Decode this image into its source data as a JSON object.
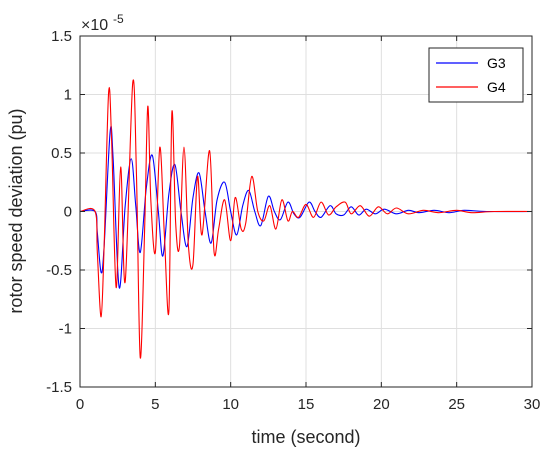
{
  "chart_data": {
    "type": "line",
    "title": "",
    "xlabel": "time (second)",
    "ylabel": "rotor speed deviation (pu)",
    "xlim": [
      0,
      30
    ],
    "ylim": [
      -1.5,
      1.5
    ],
    "y_scale_exponent_label": {
      "base": "×10",
      "exponent": "-5"
    },
    "xticks": [
      "0",
      "5",
      "10",
      "15",
      "20",
      "25",
      "30"
    ],
    "yticks": [
      "-1.5",
      "-1",
      "-0.5",
      "0",
      "0.5",
      "1",
      "1.5"
    ],
    "grid": true,
    "legend_position": "top-right",
    "series": [
      {
        "name": "G3",
        "color": "#0000ff",
        "points": [
          [
            0,
            0
          ],
          [
            1.0,
            0
          ],
          [
            1.15,
            -0.18
          ],
          [
            1.4,
            -0.52
          ],
          [
            1.6,
            -0.3
          ],
          [
            2.0,
            0.68
          ],
          [
            2.2,
            0.45
          ],
          [
            2.6,
            -0.65
          ],
          [
            3.0,
            0.05
          ],
          [
            3.4,
            0.45
          ],
          [
            3.7,
            0.05
          ],
          [
            4.0,
            -0.35
          ],
          [
            4.4,
            0.2
          ],
          [
            4.8,
            0.48
          ],
          [
            5.2,
            0.0
          ],
          [
            5.5,
            -0.38
          ],
          [
            5.9,
            0.15
          ],
          [
            6.3,
            0.4
          ],
          [
            6.7,
            0.0
          ],
          [
            7.1,
            -0.3
          ],
          [
            7.5,
            0.12
          ],
          [
            7.9,
            0.33
          ],
          [
            8.3,
            0.0
          ],
          [
            8.7,
            -0.27
          ],
          [
            9.1,
            0.1
          ],
          [
            9.6,
            0.25
          ],
          [
            10.0,
            0.0
          ],
          [
            10.4,
            -0.2
          ],
          [
            10.8,
            0.05
          ],
          [
            11.2,
            0.18
          ],
          [
            11.6,
            0.0
          ],
          [
            12.0,
            -0.12
          ],
          [
            12.5,
            0.13
          ],
          [
            12.9,
            0.0
          ],
          [
            13.3,
            -0.07
          ],
          [
            13.8,
            0.08
          ],
          [
            14.2,
            -0.02
          ],
          [
            14.6,
            -0.05
          ],
          [
            15.2,
            0.08
          ],
          [
            15.6,
            0.0
          ],
          [
            16.0,
            -0.05
          ],
          [
            16.6,
            0.05
          ],
          [
            17.0,
            -0.02
          ],
          [
            17.5,
            -0.03
          ],
          [
            18.0,
            0.04
          ],
          [
            18.5,
            -0.03
          ],
          [
            19.0,
            0.02
          ],
          [
            19.6,
            -0.02
          ],
          [
            20.2,
            0.02
          ],
          [
            21.0,
            -0.02
          ],
          [
            21.8,
            0.01
          ],
          [
            22.5,
            -0.01
          ],
          [
            23.5,
            0.01
          ],
          [
            24.5,
            -0.01
          ],
          [
            25.5,
            0.01
          ],
          [
            27,
            0
          ],
          [
            30,
            0
          ]
        ]
      },
      {
        "name": "G4",
        "color": "#ff0000",
        "points": [
          [
            0,
            0
          ],
          [
            1.0,
            0
          ],
          [
            1.15,
            -0.35
          ],
          [
            1.4,
            -0.9
          ],
          [
            1.6,
            -0.3
          ],
          [
            1.9,
            1.02
          ],
          [
            2.1,
            0.6
          ],
          [
            2.4,
            -0.65
          ],
          [
            2.7,
            0.38
          ],
          [
            3.0,
            -0.6
          ],
          [
            3.5,
            1.1
          ],
          [
            3.75,
            0.3
          ],
          [
            4.0,
            -1.25
          ],
          [
            4.3,
            -0.1
          ],
          [
            4.5,
            0.9
          ],
          [
            4.7,
            0.1
          ],
          [
            5.0,
            -0.35
          ],
          [
            5.3,
            0.55
          ],
          [
            5.6,
            -0.2
          ],
          [
            5.9,
            -0.85
          ],
          [
            6.1,
            0.85
          ],
          [
            6.35,
            -0.1
          ],
          [
            6.6,
            -0.3
          ],
          [
            6.9,
            0.55
          ],
          [
            7.2,
            -0.3
          ],
          [
            7.5,
            -0.45
          ],
          [
            7.8,
            0.3
          ],
          [
            8.1,
            -0.2
          ],
          [
            8.6,
            0.52
          ],
          [
            8.9,
            -0.35
          ],
          [
            9.2,
            -0.15
          ],
          [
            9.6,
            0.1
          ],
          [
            10.0,
            -0.25
          ],
          [
            10.3,
            0.12
          ],
          [
            10.7,
            -0.15
          ],
          [
            11.0,
            -0.1
          ],
          [
            11.4,
            0.3
          ],
          [
            11.8,
            0.0
          ],
          [
            12.2,
            -0.08
          ],
          [
            12.6,
            0.05
          ],
          [
            13.0,
            -0.15
          ],
          [
            13.4,
            0.1
          ],
          [
            13.8,
            -0.08
          ],
          [
            14.1,
            0.0
          ],
          [
            14.5,
            -0.05
          ],
          [
            15.0,
            0.06
          ],
          [
            15.5,
            -0.05
          ],
          [
            16.0,
            0.08
          ],
          [
            16.5,
            -0.03
          ],
          [
            17.0,
            0.04
          ],
          [
            17.6,
            0.08
          ],
          [
            18.0,
            -0.02
          ],
          [
            18.6,
            0.05
          ],
          [
            19.2,
            -0.04
          ],
          [
            19.8,
            0.04
          ],
          [
            20.4,
            -0.02
          ],
          [
            21.0,
            0.03
          ],
          [
            21.8,
            -0.02
          ],
          [
            22.8,
            0.01
          ],
          [
            23.8,
            -0.01
          ],
          [
            25.0,
            0.01
          ],
          [
            26.0,
            -0.01
          ],
          [
            27.5,
            0
          ],
          [
            30,
            0
          ]
        ]
      }
    ]
  }
}
